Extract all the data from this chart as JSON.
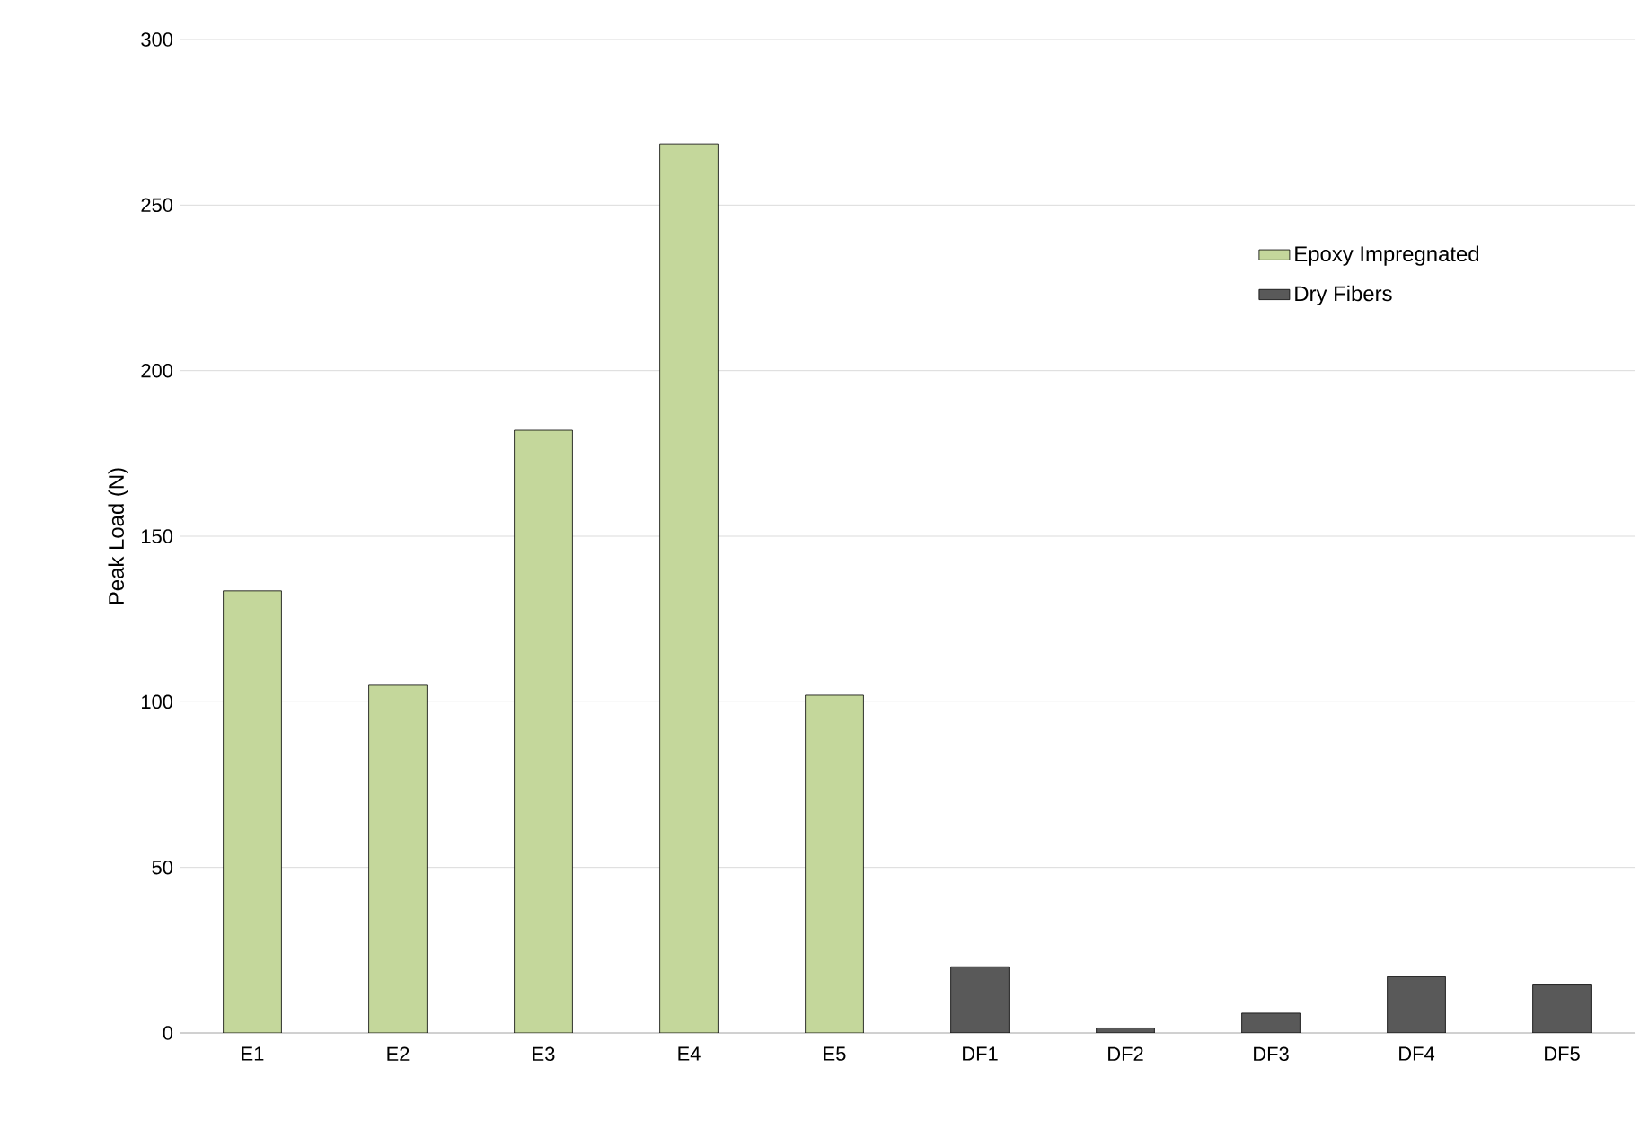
{
  "chart_data": {
    "type": "bar",
    "ylabel": "Peak Load (N)",
    "categories": [
      "E1",
      "E2",
      "E3",
      "E4",
      "E5",
      "DF1",
      "DF2",
      "DF3",
      "DF4",
      "DF5"
    ],
    "series": [
      {
        "name": "Epoxy Impregnated",
        "color": "#c4d79b",
        "values": [
          133.5,
          105,
          182,
          268.5,
          102,
          null,
          null,
          null,
          null,
          null
        ]
      },
      {
        "name": "Dry Fibers",
        "color": "#595959",
        "values": [
          null,
          null,
          null,
          null,
          null,
          20,
          1.5,
          6,
          17,
          14.5
        ]
      }
    ],
    "ylim": [
      0,
      300
    ],
    "yticks": [
      0,
      50,
      100,
      150,
      200,
      250,
      300
    ],
    "grid": "y",
    "legend": "top right"
  }
}
